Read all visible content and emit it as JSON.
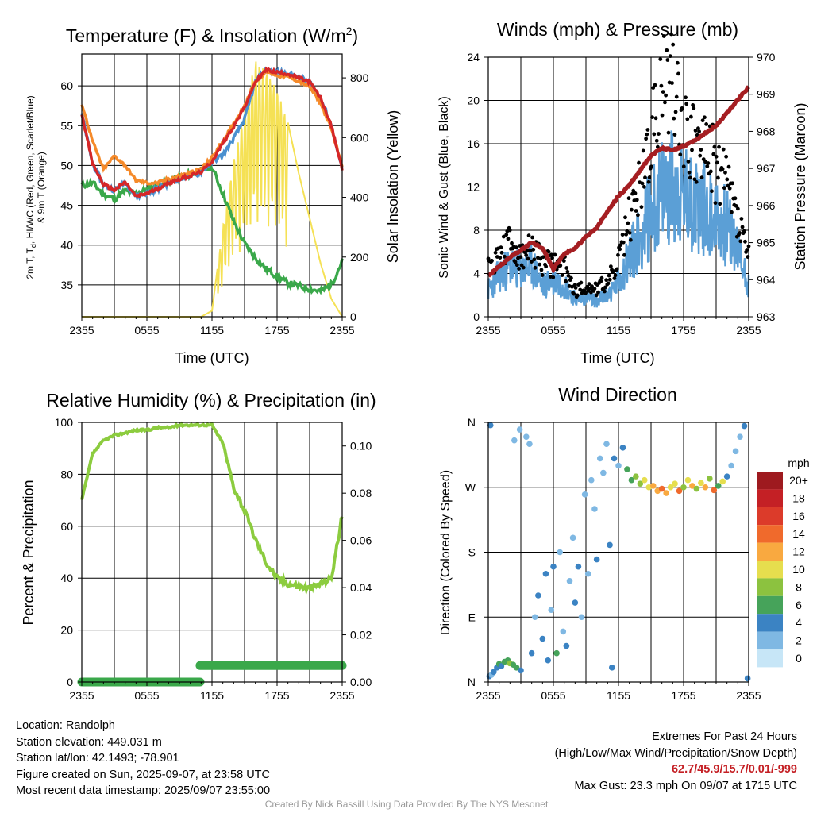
{
  "colors": {
    "red": "#d62728",
    "green": "#3aa84a",
    "blue": "#4a90d0",
    "orange": "#f58a2a",
    "yellow": "#f5e155",
    "black": "#000000",
    "maroon": "#a51e22",
    "lightblue": "#5b9fd6",
    "rh": "#8ccc3f",
    "precip": "#3aa84a"
  },
  "time_ticks": [
    "2355",
    "0555",
    "1155",
    "1755",
    "2355"
  ],
  "xlabel_time": "Time (UTC)",
  "chart_data": [
    {
      "type": "line",
      "title": "Temperature (F) & Insolation (W/m",
      "title_sup": "2",
      "title_end": ")",
      "xlabel": "Time (UTC)",
      "ylabel_left_1": "2m T, T",
      "ylabel_left_sub": "d",
      "ylabel_left_2": ", HI/WC (Red, Green, Scarlet/Blue)",
      "ylabel_left_3": "& 9m T (Orange)",
      "ylabel_right": "Solar Insolation (Yellow)",
      "ylim": [
        31,
        64
      ],
      "yticks": [
        "35",
        "40",
        "45",
        "50",
        "55",
        "60"
      ],
      "y2lim": [
        0,
        880
      ],
      "y2ticks": [
        "0",
        "200",
        "400",
        "600",
        "800"
      ],
      "x_hours": [
        0,
        1,
        2,
        3,
        4,
        5,
        6,
        7,
        8,
        9,
        10,
        11,
        12,
        13,
        14,
        15,
        16,
        17,
        18,
        19,
        20,
        21,
        22,
        23,
        24
      ],
      "series": [
        {
          "key": "temp_2m",
          "values": [
            56.5,
            50.2,
            47.6,
            46.9,
            47.9,
            46.1,
            46.5,
            47.1,
            47.8,
            48.3,
            48.7,
            49.2,
            50.5,
            52.8,
            54.9,
            57.3,
            60.5,
            62.0,
            61.7,
            61.5,
            61.0,
            60.5,
            58.5,
            55.0,
            49.5
          ]
        },
        {
          "key": "temp_9m",
          "values": [
            57.8,
            53.0,
            49.5,
            51.2,
            50.0,
            48.1,
            47.8,
            47.8,
            48.3,
            48.7,
            49.1,
            49.6,
            51.0,
            53.1,
            55.2,
            57.6,
            60.6,
            61.8,
            61.3,
            61.1,
            60.6,
            59.9,
            57.8,
            54.6,
            50.0
          ]
        },
        {
          "key": "dewpoint",
          "values": [
            47.5,
            47.8,
            46.4,
            45.8,
            46.8,
            46.5,
            47.0,
            47.5,
            48.0,
            48.6,
            48.9,
            49.3,
            49.8,
            46.5,
            43.0,
            40.2,
            38.4,
            37.0,
            36.1,
            35.2,
            34.9,
            34.5,
            34.2,
            35.0,
            38.0
          ]
        },
        {
          "key": "insolation",
          "values": [
            0,
            0,
            0,
            0,
            0,
            0,
            0,
            0,
            0,
            0,
            0,
            0,
            20,
            300,
            520,
            690,
            860,
            820,
            760,
            650,
            480,
            330,
            180,
            60,
            0
          ]
        }
      ]
    },
    {
      "type": "line",
      "title": "Winds (mph) & Pressure (mb)",
      "xlabel": "Time (UTC)",
      "ylabel_left": "Sonic Wind & Gust (Blue, Black)",
      "ylabel_right": "Station Pressure (Maroon)",
      "ylim": [
        0,
        24
      ],
      "yticks": [
        "0",
        "4",
        "8",
        "12",
        "16",
        "20",
        "24"
      ],
      "y2lim": [
        963,
        970
      ],
      "y2ticks": [
        "963",
        "964",
        "965",
        "966",
        "967",
        "968",
        "969",
        "970"
      ],
      "x_hours": [
        0,
        1,
        2,
        3,
        4,
        5,
        6,
        7,
        8,
        9,
        10,
        11,
        12,
        13,
        14,
        15,
        16,
        17,
        18,
        19,
        20,
        21,
        22,
        23,
        24
      ],
      "series": [
        {
          "key": "wind",
          "values": [
            2.5,
            3.8,
            4.6,
            4.2,
            4.8,
            2.8,
            3.4,
            3.0,
            1.6,
            1.8,
            1.5,
            2.0,
            3.2,
            5.5,
            7.5,
            9.6,
            11.5,
            12.2,
            11.0,
            10.5,
            10.0,
            9.2,
            8.3,
            6.0,
            3.0
          ]
        },
        {
          "key": "gust",
          "values": [
            4.5,
            5.6,
            6.8,
            5.2,
            6.3,
            5.0,
            4.8,
            4.6,
            2.4,
            2.8,
            2.6,
            3.2,
            5.0,
            9.0,
            12.2,
            16.2,
            20.5,
            22.8,
            17.5,
            16.0,
            15.2,
            13.8,
            12.5,
            9.0,
            5.5
          ]
        },
        {
          "key": "pressure",
          "values": [
            964.1,
            964.35,
            964.6,
            964.8,
            965.0,
            964.85,
            964.3,
            964.7,
            964.85,
            965.15,
            965.4,
            965.85,
            966.25,
            966.55,
            966.95,
            967.35,
            967.55,
            967.5,
            967.6,
            967.75,
            967.95,
            968.15,
            968.5,
            968.85,
            969.2
          ]
        }
      ]
    },
    {
      "type": "line",
      "title": "Relative Humidity (%) & Precipitation (in)",
      "xlabel": "",
      "ylabel_left": "Percent & Precipitation",
      "ylim": [
        0,
        100
      ],
      "yticks": [
        "0",
        "20",
        "40",
        "60",
        "80",
        "100"
      ],
      "y2lim": [
        0,
        0.11
      ],
      "y2ticks": [
        "0.00",
        "0.02",
        "0.04",
        "0.06",
        "0.08",
        "0.10"
      ],
      "x_hours": [
        0,
        1,
        2,
        3,
        4,
        5,
        6,
        7,
        8,
        9,
        10,
        11,
        12,
        13,
        14,
        15,
        16,
        17,
        18,
        19,
        20,
        21,
        22,
        23,
        24
      ],
      "series": [
        {
          "key": "rh",
          "values": [
            70,
            88,
            93,
            95,
            96,
            97,
            97,
            98,
            98,
            99,
            99,
            99,
            99,
            92,
            75,
            66,
            55,
            46,
            40,
            38,
            37,
            36,
            38,
            40,
            64
          ]
        }
      ],
      "precip": [
        {
          "from_hour": 0,
          "to_hour": 10.9,
          "value": 0.0
        },
        {
          "from_hour": 10.9,
          "to_hour": 24,
          "value": 0.007
        }
      ]
    },
    {
      "type": "scatter",
      "title": "Wind Direction",
      "xlabel": "",
      "ylabel": "Direction (Colored By Speed)",
      "y_categories": [
        "N",
        "E",
        "S",
        "W",
        "N"
      ],
      "ylim": [
        0,
        360
      ],
      "legend_title": "mph",
      "legend_labels": [
        "20+",
        "18",
        "16",
        "14",
        "12",
        "10",
        "8",
        "6",
        "4",
        "2",
        "0"
      ],
      "legend_colors": [
        "#9e1a1f",
        "#c42025",
        "#dc3b2a",
        "#f06a2c",
        "#f9a940",
        "#e6de4e",
        "#8cc23f",
        "#46a35a",
        "#3b83c3",
        "#7fb8e3",
        "#c7e6f7"
      ],
      "points": [
        {
          "hour": 0.1,
          "dir": 8,
          "speed": 3
        },
        {
          "hour": 0.3,
          "dir": 10,
          "speed": 2
        },
        {
          "hour": 0.5,
          "dir": 14,
          "speed": 4
        },
        {
          "hour": 0.8,
          "dir": 20,
          "speed": 3
        },
        {
          "hour": 1.0,
          "dir": 25,
          "speed": 5
        },
        {
          "hour": 1.2,
          "dir": 22,
          "speed": 4
        },
        {
          "hour": 1.5,
          "dir": 28,
          "speed": 6
        },
        {
          "hour": 1.8,
          "dir": 30,
          "speed": 5
        },
        {
          "hour": 2.0,
          "dir": 26,
          "speed": 7
        },
        {
          "hour": 2.3,
          "dir": 24,
          "speed": 6
        },
        {
          "hour": 2.6,
          "dir": 20,
          "speed": 5
        },
        {
          "hour": 3.0,
          "dir": 16,
          "speed": 4
        },
        {
          "hour": 0.2,
          "dir": 356,
          "speed": 3
        },
        {
          "hour": 2.4,
          "dir": 335,
          "speed": 1
        },
        {
          "hour": 2.9,
          "dir": 350,
          "speed": 1
        },
        {
          "hour": 3.5,
          "dir": 340,
          "speed": 2
        },
        {
          "hour": 3.8,
          "dir": 330,
          "speed": 1
        },
        {
          "hour": 4.0,
          "dir": 40,
          "speed": 3
        },
        {
          "hour": 4.3,
          "dir": 90,
          "speed": 2
        },
        {
          "hour": 4.6,
          "dir": 120,
          "speed": 3
        },
        {
          "hour": 5.0,
          "dir": 60,
          "speed": 4
        },
        {
          "hour": 5.3,
          "dir": 150,
          "speed": 3
        },
        {
          "hour": 5.5,
          "dir": 30,
          "speed": 4
        },
        {
          "hour": 5.8,
          "dir": 100,
          "speed": 2
        },
        {
          "hour": 6.0,
          "dir": 160,
          "speed": 3
        },
        {
          "hour": 6.3,
          "dir": 40,
          "speed": 5
        },
        {
          "hour": 6.6,
          "dir": 180,
          "speed": 2
        },
        {
          "hour": 6.9,
          "dir": 70,
          "speed": 1
        },
        {
          "hour": 7.2,
          "dir": 50,
          "speed": 3
        },
        {
          "hour": 7.5,
          "dir": 140,
          "speed": 2
        },
        {
          "hour": 7.8,
          "dir": 200,
          "speed": 1
        },
        {
          "hour": 8.0,
          "dir": 110,
          "speed": 3
        },
        {
          "hour": 8.3,
          "dir": 160,
          "speed": 4
        },
        {
          "hour": 8.6,
          "dir": 90,
          "speed": 2
        },
        {
          "hour": 8.9,
          "dir": 260,
          "speed": 1
        },
        {
          "hour": 9.2,
          "dir": 150,
          "speed": 2
        },
        {
          "hour": 9.5,
          "dir": 280,
          "speed": 2
        },
        {
          "hour": 9.8,
          "dir": 240,
          "speed": 1
        },
        {
          "hour": 10.0,
          "dir": 170,
          "speed": 3
        },
        {
          "hour": 10.3,
          "dir": 310,
          "speed": 2
        },
        {
          "hour": 10.6,
          "dir": 290,
          "speed": 1
        },
        {
          "hour": 10.9,
          "dir": 330,
          "speed": 2
        },
        {
          "hour": 11.2,
          "dir": 190,
          "speed": 3
        },
        {
          "hour": 11.4,
          "dir": 20,
          "speed": 4
        },
        {
          "hour": 11.6,
          "dir": 310,
          "speed": 3
        },
        {
          "hour": 12.0,
          "dir": 300,
          "speed": 2
        },
        {
          "hour": 12.4,
          "dir": 325,
          "speed": 4
        },
        {
          "hour": 12.8,
          "dir": 295,
          "speed": 5
        },
        {
          "hour": 13.2,
          "dir": 280,
          "speed": 6
        },
        {
          "hour": 13.6,
          "dir": 285,
          "speed": 7
        },
        {
          "hour": 14.0,
          "dir": 275,
          "speed": 8
        },
        {
          "hour": 14.4,
          "dir": 280,
          "speed": 9
        },
        {
          "hour": 14.8,
          "dir": 270,
          "speed": 10
        },
        {
          "hour": 15.2,
          "dir": 272,
          "speed": 11
        },
        {
          "hour": 15.6,
          "dir": 265,
          "speed": 12
        },
        {
          "hour": 16.0,
          "dir": 268,
          "speed": 13
        },
        {
          "hour": 16.4,
          "dir": 262,
          "speed": 12
        },
        {
          "hour": 16.8,
          "dir": 270,
          "speed": 10
        },
        {
          "hour": 17.2,
          "dir": 275,
          "speed": 9
        },
        {
          "hour": 17.6,
          "dir": 265,
          "speed": 13
        },
        {
          "hour": 18.0,
          "dir": 270,
          "speed": 8
        },
        {
          "hour": 18.4,
          "dir": 280,
          "speed": 10
        },
        {
          "hour": 18.8,
          "dir": 272,
          "speed": 11
        },
        {
          "hour": 19.2,
          "dir": 268,
          "speed": 7
        },
        {
          "hour": 19.6,
          "dir": 276,
          "speed": 9
        },
        {
          "hour": 20.0,
          "dir": 270,
          "speed": 12
        },
        {
          "hour": 20.4,
          "dir": 282,
          "speed": 8
        },
        {
          "hour": 20.8,
          "dir": 266,
          "speed": 13
        },
        {
          "hour": 21.2,
          "dir": 272,
          "speed": 6
        },
        {
          "hour": 21.6,
          "dir": 278,
          "speed": 9
        },
        {
          "hour": 22.0,
          "dir": 285,
          "speed": 3
        },
        {
          "hour": 22.4,
          "dir": 300,
          "speed": 2
        },
        {
          "hour": 22.8,
          "dir": 320,
          "speed": 1
        },
        {
          "hour": 23.2,
          "dir": 340,
          "speed": 2
        },
        {
          "hour": 23.6,
          "dir": 355,
          "speed": 3
        },
        {
          "hour": 23.9,
          "dir": 5,
          "speed": 4
        }
      ]
    }
  ],
  "info": {
    "location": "Location: Randolph",
    "elevation": "Station elevation: 449.031 m",
    "latlon": "Station lat/lon: 42.1493; -78.901",
    "created": "Figure created on Sun, 2025-09-07, at 23:58 UTC",
    "recent": "Most recent data timestamp: 2025/09/07 23:55:00",
    "extremes_title": "Extremes For Past 24 Hours",
    "extremes_sub": "(High/Low/Max Wind/Precipitation/Snow Depth)",
    "extremes_values": "62.7/45.9/15.7/0.01/-999",
    "max_gust": "Max Gust: 23.3 mph On 09/07 at 1715 UTC",
    "credit": "Created By Nick Bassill Using Data Provided By The NYS Mesonet"
  }
}
